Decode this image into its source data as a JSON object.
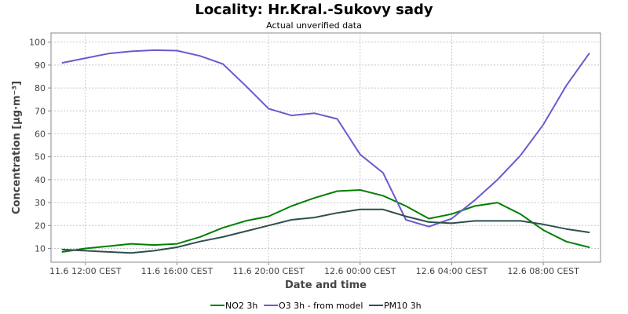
{
  "chart_data": {
    "type": "line",
    "title": "Locality: Hr.Kral.-Sukovy sady",
    "subtitle": "Actual unverified data",
    "xlabel": "Date and time",
    "ylabel": "Concentration [µg·m⁻³]",
    "ylim": [
      4,
      104
    ],
    "yticks": [
      10,
      20,
      30,
      40,
      50,
      60,
      70,
      80,
      90,
      100
    ],
    "grid": true,
    "legend_position": "bottom",
    "x_hours": [
      0,
      1,
      2,
      3,
      4,
      5,
      6,
      7,
      8,
      9,
      10,
      11,
      12,
      13,
      14,
      15,
      16,
      17,
      18,
      19,
      20,
      21,
      22,
      23
    ],
    "xlim": [
      -0.5,
      23.5
    ],
    "xticks": [
      {
        "hour": 1,
        "label": "11.6 12:00 CEST"
      },
      {
        "hour": 5,
        "label": "11.6 16:00 CEST"
      },
      {
        "hour": 9,
        "label": "11.6 20:00 CEST"
      },
      {
        "hour": 13,
        "label": "12.6 00:00 CEST"
      },
      {
        "hour": 17,
        "label": "12.6 04:00 CEST"
      },
      {
        "hour": 21,
        "label": "12.6 08:00 CEST"
      }
    ],
    "series": [
      {
        "name": "NO2 3h",
        "color": "#008000",
        "values": [
          8.5,
          10,
          11,
          12,
          11.5,
          12,
          15,
          19,
          22,
          24,
          28.5,
          32,
          35,
          35.5,
          33,
          28.5,
          23,
          25,
          28.5,
          30,
          25,
          18,
          13,
          10.5
        ]
      },
      {
        "name": "O3 3h - from model",
        "color": "#6a5acd",
        "values": [
          91,
          93,
          95,
          96,
          96.5,
          96.3,
          94,
          90.5,
          81,
          71,
          68,
          69,
          66.5,
          51,
          43,
          22.5,
          19.5,
          23,
          31,
          40,
          50.5,
          64,
          81,
          95
        ]
      },
      {
        "name": "PM10 3h",
        "color": "#2f4f4f",
        "values": [
          9.5,
          9,
          8.5,
          8,
          9,
          10.5,
          13,
          15,
          17.5,
          20,
          22.5,
          23.5,
          25.5,
          27,
          27,
          24,
          21.5,
          21,
          22,
          22,
          22,
          20.5,
          18.5,
          17
        ]
      }
    ]
  }
}
